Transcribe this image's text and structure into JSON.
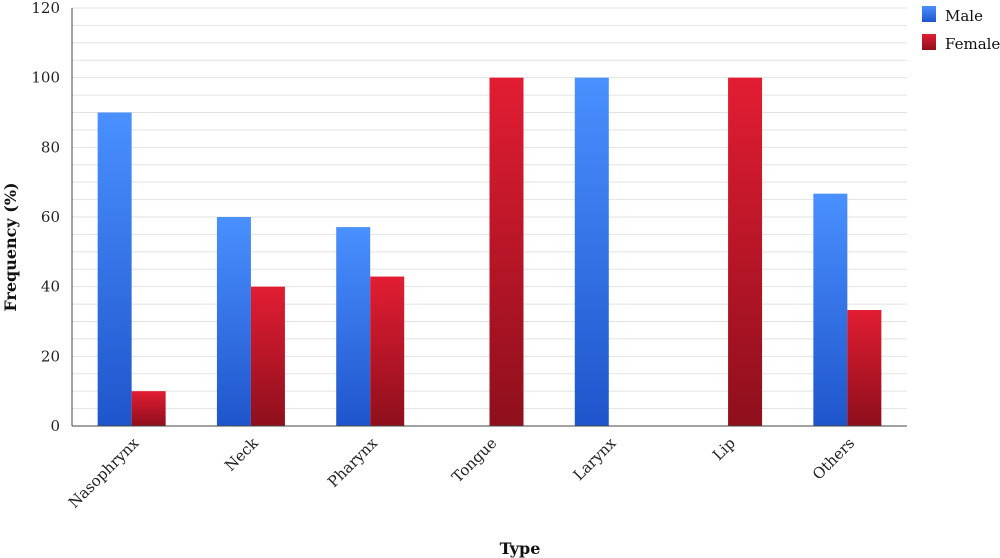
{
  "chart_data": {
    "type": "bar",
    "title": "",
    "xlabel": "Type",
    "ylabel": "Frequency (%)",
    "ylim": [
      0,
      120
    ],
    "yticks": [
      0,
      20,
      40,
      60,
      80,
      100,
      120
    ],
    "categories": [
      "Nasophrynx",
      "Neck",
      "Pharynx",
      "Tongue",
      "Larynx",
      "Lip",
      "Others"
    ],
    "series": [
      {
        "name": "Male",
        "values": [
          90,
          60,
          57.1,
          0,
          100,
          0,
          66.7
        ],
        "color": "#3d86f0"
      },
      {
        "name": "Female",
        "values": [
          10,
          40,
          42.9,
          100,
          0,
          100,
          33.3
        ],
        "color": "#cc1a2c"
      }
    ],
    "grid": true,
    "legend_position": "top-right"
  }
}
